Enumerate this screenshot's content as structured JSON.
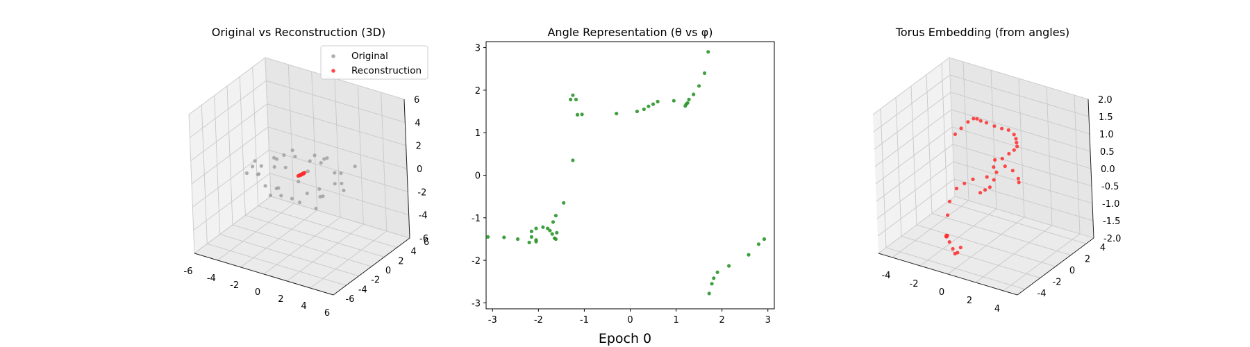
{
  "figure": {
    "suptitle": "Epoch 0"
  },
  "colors": {
    "original": "#a0a0a0",
    "reconstruction": "#ff2a2a",
    "angle_points": "#2a962a",
    "pane_left": "#f2f2f2",
    "pane_right": "#e6e6e6",
    "pane_floor": "#ebebeb",
    "grid": "#c8c8c8",
    "axis": "#000000"
  },
  "chart_data": [
    {
      "type": "scatter3d",
      "title": "Original vs Reconstruction (3D)",
      "xlim": [
        -6,
        6
      ],
      "ylim": [
        -6,
        6
      ],
      "zlim": [
        -6,
        6
      ],
      "xticks": [
        -6,
        -4,
        -2,
        0,
        2,
        4,
        6
      ],
      "yticks": [
        -6,
        -4,
        -2,
        0,
        2,
        4,
        6
      ],
      "zticks": [
        -6,
        -4,
        -2,
        0,
        2,
        4,
        6
      ],
      "grid": true,
      "legend": {
        "placement": "upper-right",
        "entries": [
          "Original",
          "Reconstruction"
        ]
      },
      "series": [
        {
          "name": "Original",
          "color": "#a0a0a0",
          "points": [
            [
              -3.2,
              -1.5,
              0.5
            ],
            [
              -3.0,
              -0.5,
              0.2
            ],
            [
              -2.6,
              0.8,
              -0.3
            ],
            [
              -2.3,
              1.8,
              0.4
            ],
            [
              -1.8,
              2.6,
              0.1
            ],
            [
              -0.8,
              3.1,
              -0.2
            ],
            [
              0.4,
              3.2,
              0.3
            ],
            [
              1.5,
              2.8,
              -0.4
            ],
            [
              2.5,
              2.0,
              0.2
            ],
            [
              3.1,
              1.0,
              -0.1
            ],
            [
              3.2,
              -0.2,
              0.4
            ],
            [
              2.8,
              -1.4,
              -0.3
            ],
            [
              2.0,
              -2.4,
              0.1
            ],
            [
              1.0,
              -3.0,
              -0.4
            ],
            [
              -0.2,
              -3.2,
              0.2
            ],
            [
              -1.4,
              -2.8,
              -0.1
            ],
            [
              -2.4,
              -2.0,
              0.3
            ],
            [
              -3.1,
              -0.9,
              -0.4
            ],
            [
              -1.8,
              -0.6,
              1.3
            ],
            [
              -1.2,
              1.2,
              1.4
            ],
            [
              0.5,
              1.6,
              1.3
            ],
            [
              1.6,
              0.6,
              1.4
            ],
            [
              1.4,
              -1.1,
              1.3
            ],
            [
              -0.2,
              -1.7,
              1.4
            ],
            [
              -1.7,
              -0.3,
              -1.4
            ],
            [
              -0.9,
              1.4,
              -1.3
            ],
            [
              0.9,
              1.4,
              -1.4
            ],
            [
              1.7,
              0.1,
              -1.3
            ],
            [
              0.8,
              -1.5,
              -1.4
            ],
            [
              -0.8,
              -1.5,
              -1.3
            ],
            [
              -4.0,
              0.3,
              0.0
            ],
            [
              0.2,
              4.0,
              0.0
            ],
            [
              4.0,
              -0.3,
              0.1
            ],
            [
              -0.3,
              -4.0,
              -0.1
            ],
            [
              -3.4,
              2.6,
              -0.6
            ],
            [
              3.3,
              2.8,
              0.7
            ],
            [
              3.0,
              -2.9,
              -0.7
            ],
            [
              -2.8,
              -3.1,
              0.7
            ]
          ]
        },
        {
          "name": "Reconstruction",
          "color": "#ff2a2a",
          "points": [
            [
              0.05,
              0.1,
              0.05
            ],
            [
              0.1,
              0.2,
              0.1
            ],
            [
              0.15,
              0.3,
              0.12
            ],
            [
              0.2,
              0.35,
              0.15
            ],
            [
              -0.05,
              0.05,
              0.02
            ],
            [
              0.0,
              0.15,
              0.08
            ],
            [
              0.12,
              0.25,
              0.14
            ],
            [
              0.18,
              0.4,
              0.18
            ],
            [
              0.22,
              0.45,
              0.2
            ],
            [
              -0.1,
              0.0,
              0.0
            ],
            [
              0.08,
              0.18,
              0.1
            ],
            [
              0.14,
              0.28,
              0.16
            ]
          ]
        }
      ]
    },
    {
      "type": "scatter",
      "title": "Angle Representation (θ vs φ)",
      "xlim": [
        -3.14,
        3.14
      ],
      "ylim": [
        -3.14,
        3.14
      ],
      "xticks": [
        -3,
        -2,
        -1,
        0,
        1,
        2,
        3
      ],
      "yticks": [
        -3,
        -2,
        -1,
        0,
        1,
        2,
        3
      ],
      "grid": false,
      "series": [
        {
          "color": "#2a962a",
          "points": [
            [
              -3.1,
              -1.45
            ],
            [
              -2.75,
              -1.46
            ],
            [
              -2.45,
              -1.5
            ],
            [
              -2.2,
              -1.58
            ],
            [
              -2.05,
              -1.56
            ],
            [
              -2.05,
              -1.52
            ],
            [
              -2.15,
              -1.45
            ],
            [
              -2.15,
              -1.32
            ],
            [
              -2.05,
              -1.25
            ],
            [
              -1.9,
              -1.22
            ],
            [
              -1.8,
              -1.25
            ],
            [
              -1.75,
              -1.3
            ],
            [
              -1.7,
              -1.38
            ],
            [
              -1.65,
              -1.48
            ],
            [
              -1.62,
              -1.5
            ],
            [
              -1.6,
              -1.35
            ],
            [
              -1.68,
              -1.1
            ],
            [
              -1.62,
              -0.95
            ],
            [
              -1.45,
              -0.65
            ],
            [
              -1.25,
              0.35
            ],
            [
              -1.3,
              1.78
            ],
            [
              -1.25,
              1.88
            ],
            [
              -1.18,
              1.78
            ],
            [
              -1.15,
              1.42
            ],
            [
              -1.05,
              1.43
            ],
            [
              -0.3,
              1.45
            ],
            [
              0.15,
              1.5
            ],
            [
              0.3,
              1.55
            ],
            [
              0.4,
              1.62
            ],
            [
              0.5,
              1.67
            ],
            [
              0.6,
              1.73
            ],
            [
              0.95,
              1.75
            ],
            [
              1.2,
              1.63
            ],
            [
              1.22,
              1.67
            ],
            [
              1.25,
              1.7
            ],
            [
              1.28,
              1.78
            ],
            [
              1.38,
              1.9
            ],
            [
              1.5,
              2.1
            ],
            [
              1.62,
              2.4
            ],
            [
              1.7,
              2.9
            ],
            [
              1.72,
              -2.78
            ],
            [
              1.78,
              -2.55
            ],
            [
              1.82,
              -2.42
            ],
            [
              1.9,
              -2.28
            ],
            [
              2.15,
              -2.13
            ],
            [
              2.58,
              -1.87
            ],
            [
              2.8,
              -1.62
            ],
            [
              2.92,
              -1.5
            ]
          ]
        }
      ]
    },
    {
      "type": "scatter3d",
      "title": "Torus Embedding (from angles)",
      "xlim": [
        -5,
        5
      ],
      "ylim": [
        -5,
        5
      ],
      "zlim": [
        -2,
        2
      ],
      "xticks": [
        -4,
        -2,
        0,
        2,
        4
      ],
      "yticks": [
        -4,
        -2,
        0,
        2,
        4
      ],
      "zticks": [
        "-2.0",
        "-1.5",
        "-1.0",
        "-0.5",
        "0.0",
        "0.5",
        "1.0",
        "1.5",
        "2.0"
      ],
      "grid": true,
      "series": [
        {
          "color": "#ff2a2a",
          "points": [
            [
              -2.4,
              -0.8,
              -1.9
            ],
            [
              -2.2,
              -1.2,
              -1.8
            ],
            [
              -2.0,
              -1.5,
              -1.7
            ],
            [
              -1.7,
              -1.9,
              -1.6
            ],
            [
              -1.4,
              -2.2,
              -1.7
            ],
            [
              -1.0,
              -2.5,
              -1.8
            ],
            [
              -0.8,
              -2.6,
              -1.9
            ],
            [
              -0.5,
              -2.8,
              -1.8
            ],
            [
              -0.2,
              -2.9,
              -1.6
            ],
            [
              -2.6,
              -0.2,
              -1.4
            ],
            [
              -2.7,
              0.3,
              -1.1
            ],
            [
              -2.5,
              0.9,
              -0.8
            ],
            [
              -2.2,
              1.4,
              -0.7
            ],
            [
              -1.8,
              1.8,
              -0.6
            ],
            [
              -1.0,
              2.2,
              -0.5
            ],
            [
              -0.6,
              2.4,
              -0.2
            ],
            [
              0.0,
              2.5,
              0.1
            ],
            [
              0.5,
              2.5,
              0.3
            ],
            [
              1.0,
              2.3,
              0.5
            ],
            [
              1.4,
              2.0,
              0.7
            ],
            [
              0.2,
              1.2,
              0.3
            ],
            [
              0.4,
              1.0,
              0.0
            ],
            [
              0.3,
              0.8,
              -0.2
            ],
            [
              0.1,
              0.6,
              -0.4
            ],
            [
              -0.2,
              0.5,
              -0.5
            ],
            [
              -0.5,
              0.4,
              -0.6
            ],
            [
              1.6,
              1.6,
              0.9
            ],
            [
              1.8,
              1.2,
              1.1
            ],
            [
              1.9,
              0.8,
              1.3
            ],
            [
              1.8,
              0.3,
              1.5
            ],
            [
              1.6,
              -0.2,
              1.6
            ],
            [
              1.3,
              -0.6,
              1.7
            ],
            [
              0.9,
              -0.9,
              1.8
            ],
            [
              0.6,
              -1.1,
              1.85
            ],
            [
              0.4,
              -1.2,
              1.9
            ],
            [
              0.2,
              -1.3,
              1.9
            ],
            [
              -0.1,
              -1.5,
              1.8
            ],
            [
              -0.5,
              -1.7,
              1.6
            ],
            [
              -0.9,
              -1.8,
              1.4
            ],
            [
              1.9,
              -0.5,
              0.6
            ],
            [
              2.1,
              0.1,
              0.4
            ],
            [
              2.2,
              0.6,
              0.1
            ],
            [
              2.0,
              1.0,
              -0.1
            ]
          ]
        }
      ]
    }
  ]
}
